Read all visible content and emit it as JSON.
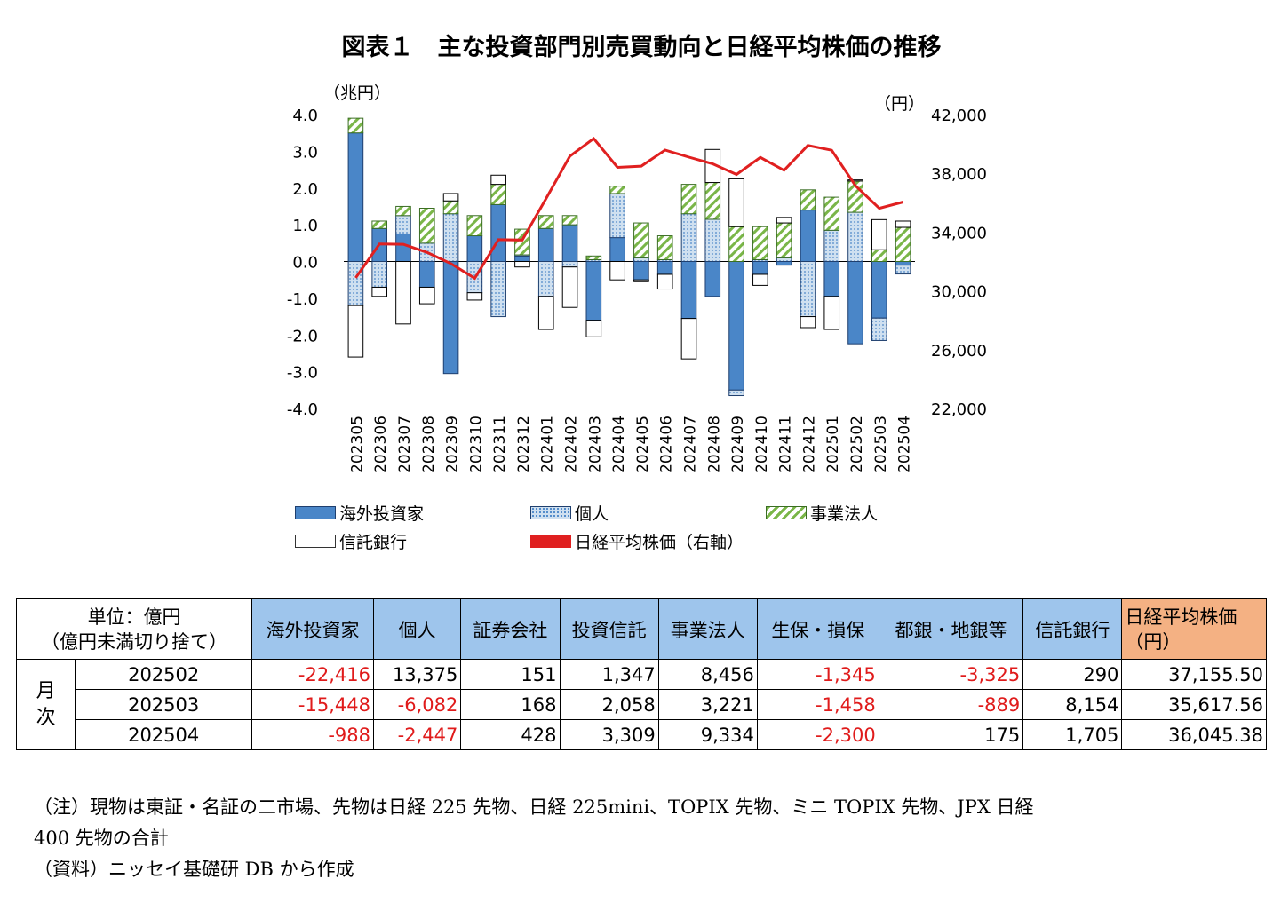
{
  "title": "図表１　主な投資部門別売買動向と日経平均株価の推移",
  "chart_data": {
    "type": "bar",
    "stacked": true,
    "left_axis_unit": "（兆円）",
    "right_axis_unit": "（円）",
    "ylim": [
      -4.0,
      4.0
    ],
    "yticks": [
      "4.0",
      "3.0",
      "2.0",
      "1.0",
      "0.0",
      "-1.0",
      "-2.0",
      "-3.0",
      "-4.0"
    ],
    "y2lim": [
      22000,
      42000
    ],
    "y2ticks": [
      "42,000",
      "38,000",
      "34,000",
      "30,000",
      "26,000",
      "22,000"
    ],
    "categories": [
      "202305",
      "202306",
      "202307",
      "202308",
      "202309",
      "202310",
      "202311",
      "202312",
      "202401",
      "202402",
      "202403",
      "202404",
      "202405",
      "202406",
      "202407",
      "202408",
      "202409",
      "202410",
      "202411",
      "202412",
      "202501",
      "202502",
      "202503",
      "202504"
    ],
    "series": [
      {
        "name": "海外投資家",
        "color": "#4a86c8",
        "values": [
          3.5,
          0.9,
          0.75,
          -0.7,
          -3.05,
          0.7,
          1.55,
          0.15,
          0.9,
          1.0,
          -1.6,
          0.65,
          -0.5,
          -0.35,
          -1.55,
          -0.95,
          -3.5,
          -0.35,
          -0.1,
          1.4,
          -0.95,
          -2.24,
          -1.54,
          -0.1
        ]
      },
      {
        "name": "個人",
        "color": "#cfe0f0",
        "values": [
          -1.2,
          -0.7,
          0.5,
          0.5,
          1.3,
          -0.85,
          -1.5,
          0.03,
          -0.95,
          -0.15,
          0.05,
          1.2,
          0.1,
          0.05,
          1.3,
          1.15,
          -0.15,
          0.05,
          0.1,
          -1.5,
          0.85,
          1.34,
          -0.61,
          -0.24
        ]
      },
      {
        "name": "事業法人",
        "color": "#7ab648",
        "values": [
          0.4,
          0.2,
          0.25,
          0.95,
          0.35,
          0.55,
          0.55,
          0.7,
          0.35,
          0.25,
          0.1,
          0.2,
          0.95,
          0.65,
          0.8,
          1.0,
          0.95,
          0.9,
          0.95,
          0.55,
          0.9,
          0.85,
          0.32,
          0.93
        ]
      },
      {
        "name": "信託銀行",
        "color": "#ffffff",
        "values": [
          -1.4,
          -0.25,
          -1.7,
          -0.45,
          0.2,
          -0.2,
          0.25,
          -0.15,
          -0.9,
          -1.1,
          -0.45,
          -0.5,
          -0.05,
          -0.4,
          -1.1,
          0.9,
          1.3,
          -0.3,
          0.15,
          -0.3,
          -0.9,
          0.03,
          0.82,
          0.17
        ]
      },
      {
        "name": "日経平均株価（右軸）",
        "color": "#e02020",
        "values": [
          30888,
          33189,
          33172,
          32619,
          31857,
          30859,
          33486,
          33464,
          36287,
          39166,
          40369,
          38405,
          38488,
          39583,
          39102,
          38648,
          37920,
          39081,
          38208,
          39895,
          39572,
          37155.5,
          35617.56,
          36045.38
        ]
      }
    ]
  },
  "table": {
    "unit_line1": "単位：億円",
    "unit_line2": "（億円未満切り捨て）",
    "headers": [
      "海外投資家",
      "個人",
      "証券会社",
      "投資信託",
      "事業法人",
      "生保・損保",
      "都銀・地銀等",
      "信託銀行"
    ],
    "nikkei_header_line1": "日経平均株価",
    "nikkei_header_line2": "（円）",
    "group_line1": "月",
    "group_line2": "次",
    "rows": [
      {
        "label": "202502",
        "cells": [
          "-22,416",
          "13,375",
          "151",
          "1,347",
          "8,456",
          "-1,345",
          "-3,325",
          "290",
          "37,155.50"
        ]
      },
      {
        "label": "202503",
        "cells": [
          "-15,448",
          "-6,082",
          "168",
          "2,058",
          "3,221",
          "-1,458",
          "-889",
          "8,154",
          "35,617.56"
        ]
      },
      {
        "label": "202504",
        "cells": [
          "-988",
          "-2,447",
          "428",
          "3,309",
          "9,334",
          "-2,300",
          "175",
          "1,705",
          "36,045.38"
        ]
      }
    ]
  },
  "notes": {
    "line1": "（注）現物は東証・名証の二市場、先物は日経 225 先物、日経 225mini、TOPIX 先物、ミニ TOPIX 先物、JPX 日経",
    "line2": "400 先物の合計",
    "line3": "（資料）ニッセイ基礎研 DB から作成"
  }
}
